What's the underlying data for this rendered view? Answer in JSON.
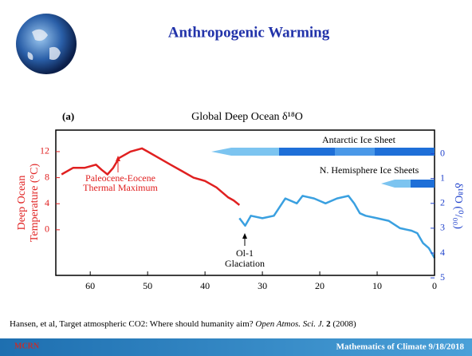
{
  "slide": {
    "title": "Anthropogenic Warming",
    "citation": {
      "text": "Hansen, et al, Target atmospheric CO2: Where should humanity aim?",
      "journal": "Open Atmos. Sci. J.",
      "volume": "2",
      "year": "(2008)"
    },
    "footer": "Mathematics of Climate  9/18/2018",
    "logo": "MCRN"
  },
  "chart_data": {
    "type": "line",
    "panel": "(a)",
    "title": "Global Deep Ocean δ¹⁸O",
    "ylabel": [
      "Deep Ocean",
      "Temperature (°C)"
    ],
    "y2label": "δ¹⁸O (⁰/₀₀)",
    "xlim": [
      66,
      0
    ],
    "xticks": [
      60,
      50,
      40,
      30,
      20,
      10,
      0
    ],
    "ylim": [
      -7,
      15.3
    ],
    "yticks": [
      12,
      8,
      4,
      0
    ],
    "y2lim": [
      -0.95,
      4.9
    ],
    "y2ticks": [
      0,
      1,
      2,
      3,
      4,
      5
    ],
    "annotations": {
      "petm": [
        "Paleocene-Eocene",
        "Thermal Maximum"
      ],
      "oi1": [
        "Ol-1",
        "Glaciation"
      ],
      "antarctic": "Antarctic Ice Sheet",
      "nh": "N. Hemisphere Ice Sheets"
    },
    "series": [
      {
        "color": "#e02020",
        "x": [
          65,
          63,
          61,
          59,
          58,
          57,
          56,
          55,
          53,
          51,
          50,
          48,
          46,
          44,
          42,
          40,
          38,
          36,
          35,
          34
        ],
        "values": [
          8.5,
          9.5,
          9.5,
          10,
          9.2,
          8.5,
          9.5,
          11,
          12,
          12.5,
          12,
          11,
          10,
          9,
          8,
          7.5,
          6.5,
          5,
          4.5,
          3.8
        ]
      },
      {
        "color": "#3aa0e0",
        "axis": "y2",
        "x": [
          34,
          33,
          32,
          30,
          28,
          26,
          24,
          23,
          21,
          19,
          17,
          15,
          14,
          13,
          12,
          10,
          8,
          6,
          4,
          3,
          2,
          1,
          0
        ],
        "values": [
          2.6,
          2.9,
          2.5,
          2.6,
          2.5,
          1.8,
          2.0,
          1.7,
          1.8,
          2.0,
          1.8,
          1.7,
          2.0,
          2.4,
          2.5,
          2.6,
          2.7,
          3.0,
          3.1,
          3.2,
          3.6,
          3.8,
          4.2
        ]
      }
    ]
  }
}
